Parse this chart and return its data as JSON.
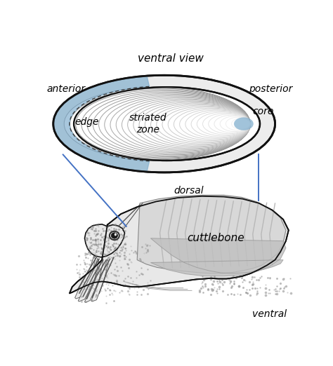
{
  "bg_color": "#ffffff",
  "label_ventral_view": "ventral view",
  "label_anterior": "anterior",
  "label_posterior": "posterior",
  "label_core": "core",
  "label_edge": "edge",
  "label_striated_zone": "striated\nzone",
  "label_dorsal": "dorsal",
  "label_ventral": "ventral",
  "label_cuttlebone": "cuttlebone",
  "color_blue": "#7aaacb",
  "color_shell_fill": "#ececec",
  "color_shell_outline": "#111111",
  "color_annotation_line": "#4472c4",
  "color_squid_light": "#e8e8e8",
  "color_squid_med": "#d0d0d0",
  "color_squid_dark": "#aaaaaa",
  "color_bone_fill": "#d8d8d8",
  "fontsize_labels": 10,
  "fontsize_title": 11
}
